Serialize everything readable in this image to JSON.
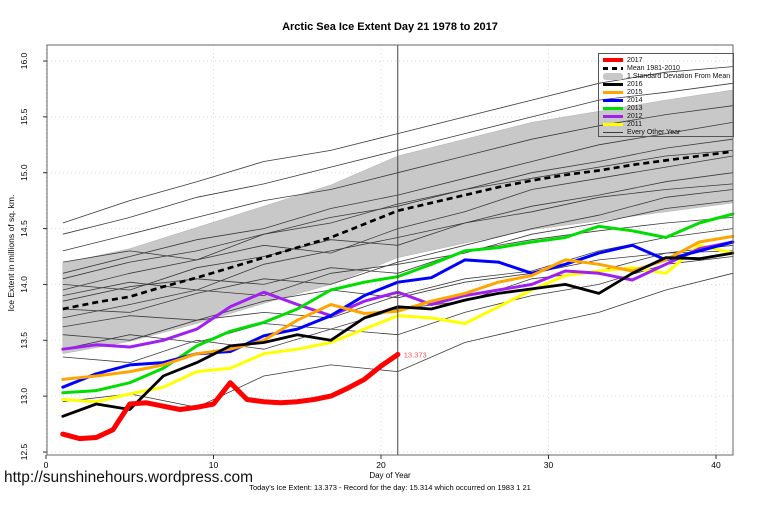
{
  "chart": {
    "title": "Arctic Sea Ice Extent Day 21 1978 to 2017"
  },
  "footer": {
    "url": "http://sunshinehours.wordpress.com",
    "caption": "Today's Ice Extent: 13.373  - Record for the day: 15.314 which occurred on 1983 1 21"
  },
  "legend": {
    "items": [
      {
        "label": "2017",
        "kind": "thick",
        "color": "#FF0000"
      },
      {
        "label": "Mean 1981-2010",
        "kind": "dash",
        "color": "#000000"
      },
      {
        "label": "1 Standard Deviation From Mean",
        "kind": "band",
        "color": "#C8C8C8"
      },
      {
        "label": "2016",
        "kind": "line",
        "color": "#000000"
      },
      {
        "label": "2015",
        "kind": "line",
        "color": "#FFA500"
      },
      {
        "label": "2014",
        "kind": "line",
        "color": "#0000FF"
      },
      {
        "label": "2013",
        "kind": "line",
        "color": "#00DD00"
      },
      {
        "label": "2012",
        "kind": "line",
        "color": "#A020F0"
      },
      {
        "label": "2011",
        "kind": "line",
        "color": "#FFFF00"
      },
      {
        "label": "Every Other Year",
        "kind": "thin",
        "color": "#3C3C3C"
      }
    ]
  },
  "chart_data": {
    "type": "line",
    "title": "Arctic Sea Ice Extent Day 21 1978 to 2017",
    "xlabel": "Day of Year",
    "ylabel": "Ice Extent in millions of sq. km.",
    "xlim": [
      0,
      41
    ],
    "ylim": [
      12.5,
      16.0
    ],
    "xticks": [
      0,
      10,
      20,
      30,
      40
    ],
    "yticks": [
      12.5,
      13.0,
      13.5,
      14.0,
      14.5,
      15.0,
      15.5,
      16.0
    ],
    "grid": "dotted",
    "legend_position": "top-right",
    "today_day": 21,
    "annotation": {
      "day": 21,
      "value": 13.373,
      "label": "13.373",
      "color": "#FF0000"
    },
    "days_biennial": [
      1,
      3,
      5,
      7,
      9,
      11,
      13,
      15,
      17,
      19,
      21,
      23,
      25,
      27,
      29,
      31,
      33,
      35,
      37,
      39,
      41
    ],
    "mean": {
      "name": "Mean 1981-2010",
      "color": "#000000",
      "values": [
        13.78,
        13.84,
        13.89,
        13.98,
        14.06,
        14.15,
        14.24,
        14.33,
        14.42,
        14.54,
        14.66,
        14.73,
        14.8,
        14.87,
        14.93,
        14.98,
        15.02,
        15.07,
        15.11,
        15.15,
        15.19
      ]
    },
    "band": {
      "name": "1 Standard Deviation From Mean",
      "color": "#C8C8C8",
      "days": [
        1,
        5,
        9,
        13,
        17,
        21,
        25,
        29,
        33,
        37,
        41
      ],
      "top": [
        14.19,
        14.32,
        14.51,
        14.7,
        14.89,
        15.15,
        15.3,
        15.45,
        15.55,
        15.65,
        15.74
      ],
      "bottom": [
        13.38,
        13.49,
        13.65,
        13.83,
        14.0,
        14.24,
        14.37,
        14.49,
        14.57,
        14.65,
        14.73
      ]
    },
    "series": [
      {
        "name": "2011",
        "color": "#FFFF00",
        "width": 3,
        "values": [
          12.97,
          12.95,
          13.02,
          13.08,
          13.22,
          13.25,
          13.38,
          13.42,
          13.48,
          13.6,
          13.72,
          13.7,
          13.65,
          13.8,
          13.95,
          14.08,
          14.12,
          14.15,
          14.1,
          14.35,
          14.28
        ]
      },
      {
        "name": "2012",
        "color": "#A020F0",
        "width": 3,
        "values": [
          13.42,
          13.46,
          13.44,
          13.5,
          13.6,
          13.8,
          13.93,
          13.82,
          13.72,
          13.85,
          13.93,
          13.82,
          13.9,
          13.95,
          14.0,
          14.12,
          14.1,
          14.04,
          14.18,
          14.32,
          14.38
        ]
      },
      {
        "name": "2013",
        "color": "#00DD00",
        "width": 3,
        "values": [
          13.03,
          13.05,
          13.12,
          13.25,
          13.45,
          13.58,
          13.66,
          13.78,
          13.95,
          14.02,
          14.07,
          14.18,
          14.3,
          14.33,
          14.38,
          14.42,
          14.52,
          14.48,
          14.42,
          14.55,
          14.63
        ]
      },
      {
        "name": "2014",
        "color": "#0000FF",
        "width": 3,
        "values": [
          13.08,
          13.2,
          13.28,
          13.3,
          13.38,
          13.4,
          13.54,
          13.6,
          13.72,
          13.9,
          14.02,
          14.06,
          14.22,
          14.2,
          14.1,
          14.18,
          14.28,
          14.35,
          14.22,
          14.3,
          14.38
        ]
      },
      {
        "name": "2015",
        "color": "#FFA500",
        "width": 3,
        "values": [
          13.15,
          13.18,
          13.22,
          13.28,
          13.38,
          13.42,
          13.5,
          13.68,
          13.82,
          13.74,
          13.76,
          13.85,
          13.92,
          14.02,
          14.08,
          14.22,
          14.18,
          14.12,
          14.22,
          14.38,
          14.43
        ]
      },
      {
        "name": "2016",
        "color": "#000000",
        "width": 2.8,
        "values": [
          12.82,
          12.93,
          12.88,
          13.18,
          13.3,
          13.45,
          13.48,
          13.55,
          13.5,
          13.7,
          13.8,
          13.78,
          13.86,
          13.92,
          13.96,
          14.0,
          13.92,
          14.1,
          14.24,
          14.23,
          14.28
        ]
      },
      {
        "name": "2017",
        "color": "#FF0000",
        "width": 5,
        "days": [
          1,
          2,
          3,
          4,
          5,
          6,
          7,
          8,
          9,
          10,
          11,
          12,
          13,
          14,
          15,
          16,
          17,
          18,
          19,
          20,
          21
        ],
        "values": [
          12.66,
          12.62,
          12.63,
          12.7,
          12.93,
          12.94,
          12.91,
          12.88,
          12.9,
          12.93,
          13.12,
          12.97,
          12.95,
          12.94,
          12.95,
          12.97,
          13.0,
          13.07,
          13.15,
          13.27,
          13.373
        ]
      }
    ],
    "other_years": {
      "name": "Every Other Year",
      "color": "#3C3C3C",
      "days": [
        1,
        5,
        9,
        13,
        17,
        21,
        25,
        29,
        33,
        37,
        41
      ],
      "values": [
        [
          12.95,
          13.02,
          12.9,
          13.18,
          13.28,
          13.22,
          13.48,
          13.62,
          13.75,
          13.95,
          14.1
        ],
        [
          13.35,
          13.3,
          13.5,
          13.42,
          13.6,
          13.55,
          13.75,
          13.9,
          14.0,
          14.18,
          14.25
        ],
        [
          13.42,
          13.55,
          13.48,
          13.65,
          13.6,
          13.78,
          13.85,
          14.05,
          14.12,
          14.28,
          14.35
        ],
        [
          13.55,
          13.5,
          13.68,
          13.75,
          13.7,
          13.9,
          14.05,
          14.12,
          14.3,
          14.42,
          14.5
        ],
        [
          13.62,
          13.72,
          13.68,
          13.85,
          13.95,
          13.88,
          14.02,
          14.1,
          14.22,
          14.28,
          14.3
        ],
        [
          13.7,
          13.82,
          13.95,
          13.9,
          14.1,
          14.18,
          14.28,
          14.45,
          14.55,
          14.68,
          14.75
        ],
        [
          13.78,
          13.75,
          13.92,
          14.05,
          14.0,
          14.2,
          14.35,
          14.5,
          14.62,
          14.78,
          14.85
        ],
        [
          13.85,
          13.98,
          14.05,
          14.0,
          14.15,
          14.1,
          14.3,
          14.4,
          14.48,
          14.55,
          14.6
        ],
        [
          13.9,
          14.02,
          13.95,
          14.18,
          14.3,
          14.42,
          14.55,
          14.7,
          14.8,
          14.92,
          15.0
        ],
        [
          13.95,
          14.1,
          14.22,
          14.35,
          14.28,
          14.5,
          14.65,
          14.85,
          14.95,
          15.05,
          15.15
        ],
        [
          14.0,
          13.95,
          14.15,
          14.25,
          14.4,
          14.35,
          14.55,
          14.65,
          14.78,
          14.85,
          14.9
        ],
        [
          14.05,
          14.2,
          14.3,
          14.45,
          14.55,
          14.72,
          14.85,
          15.0,
          15.1,
          15.22,
          15.3
        ],
        [
          14.1,
          14.25,
          14.4,
          14.5,
          14.68,
          14.8,
          14.95,
          15.1,
          15.25,
          15.35,
          15.45
        ],
        [
          14.2,
          14.3,
          14.22,
          14.45,
          14.6,
          14.7,
          14.85,
          14.95,
          15.05,
          15.15,
          15.2
        ],
        [
          14.3,
          14.45,
          14.6,
          14.75,
          14.85,
          15.0,
          15.15,
          15.3,
          15.42,
          15.52,
          15.6
        ],
        [
          14.45,
          14.6,
          14.78,
          14.9,
          15.05,
          15.2,
          15.35,
          15.5,
          15.65,
          15.72,
          15.8
        ],
        [
          14.55,
          14.75,
          14.92,
          15.1,
          15.2,
          15.35,
          15.5,
          15.65,
          15.8,
          15.9,
          15.95
        ]
      ]
    }
  }
}
